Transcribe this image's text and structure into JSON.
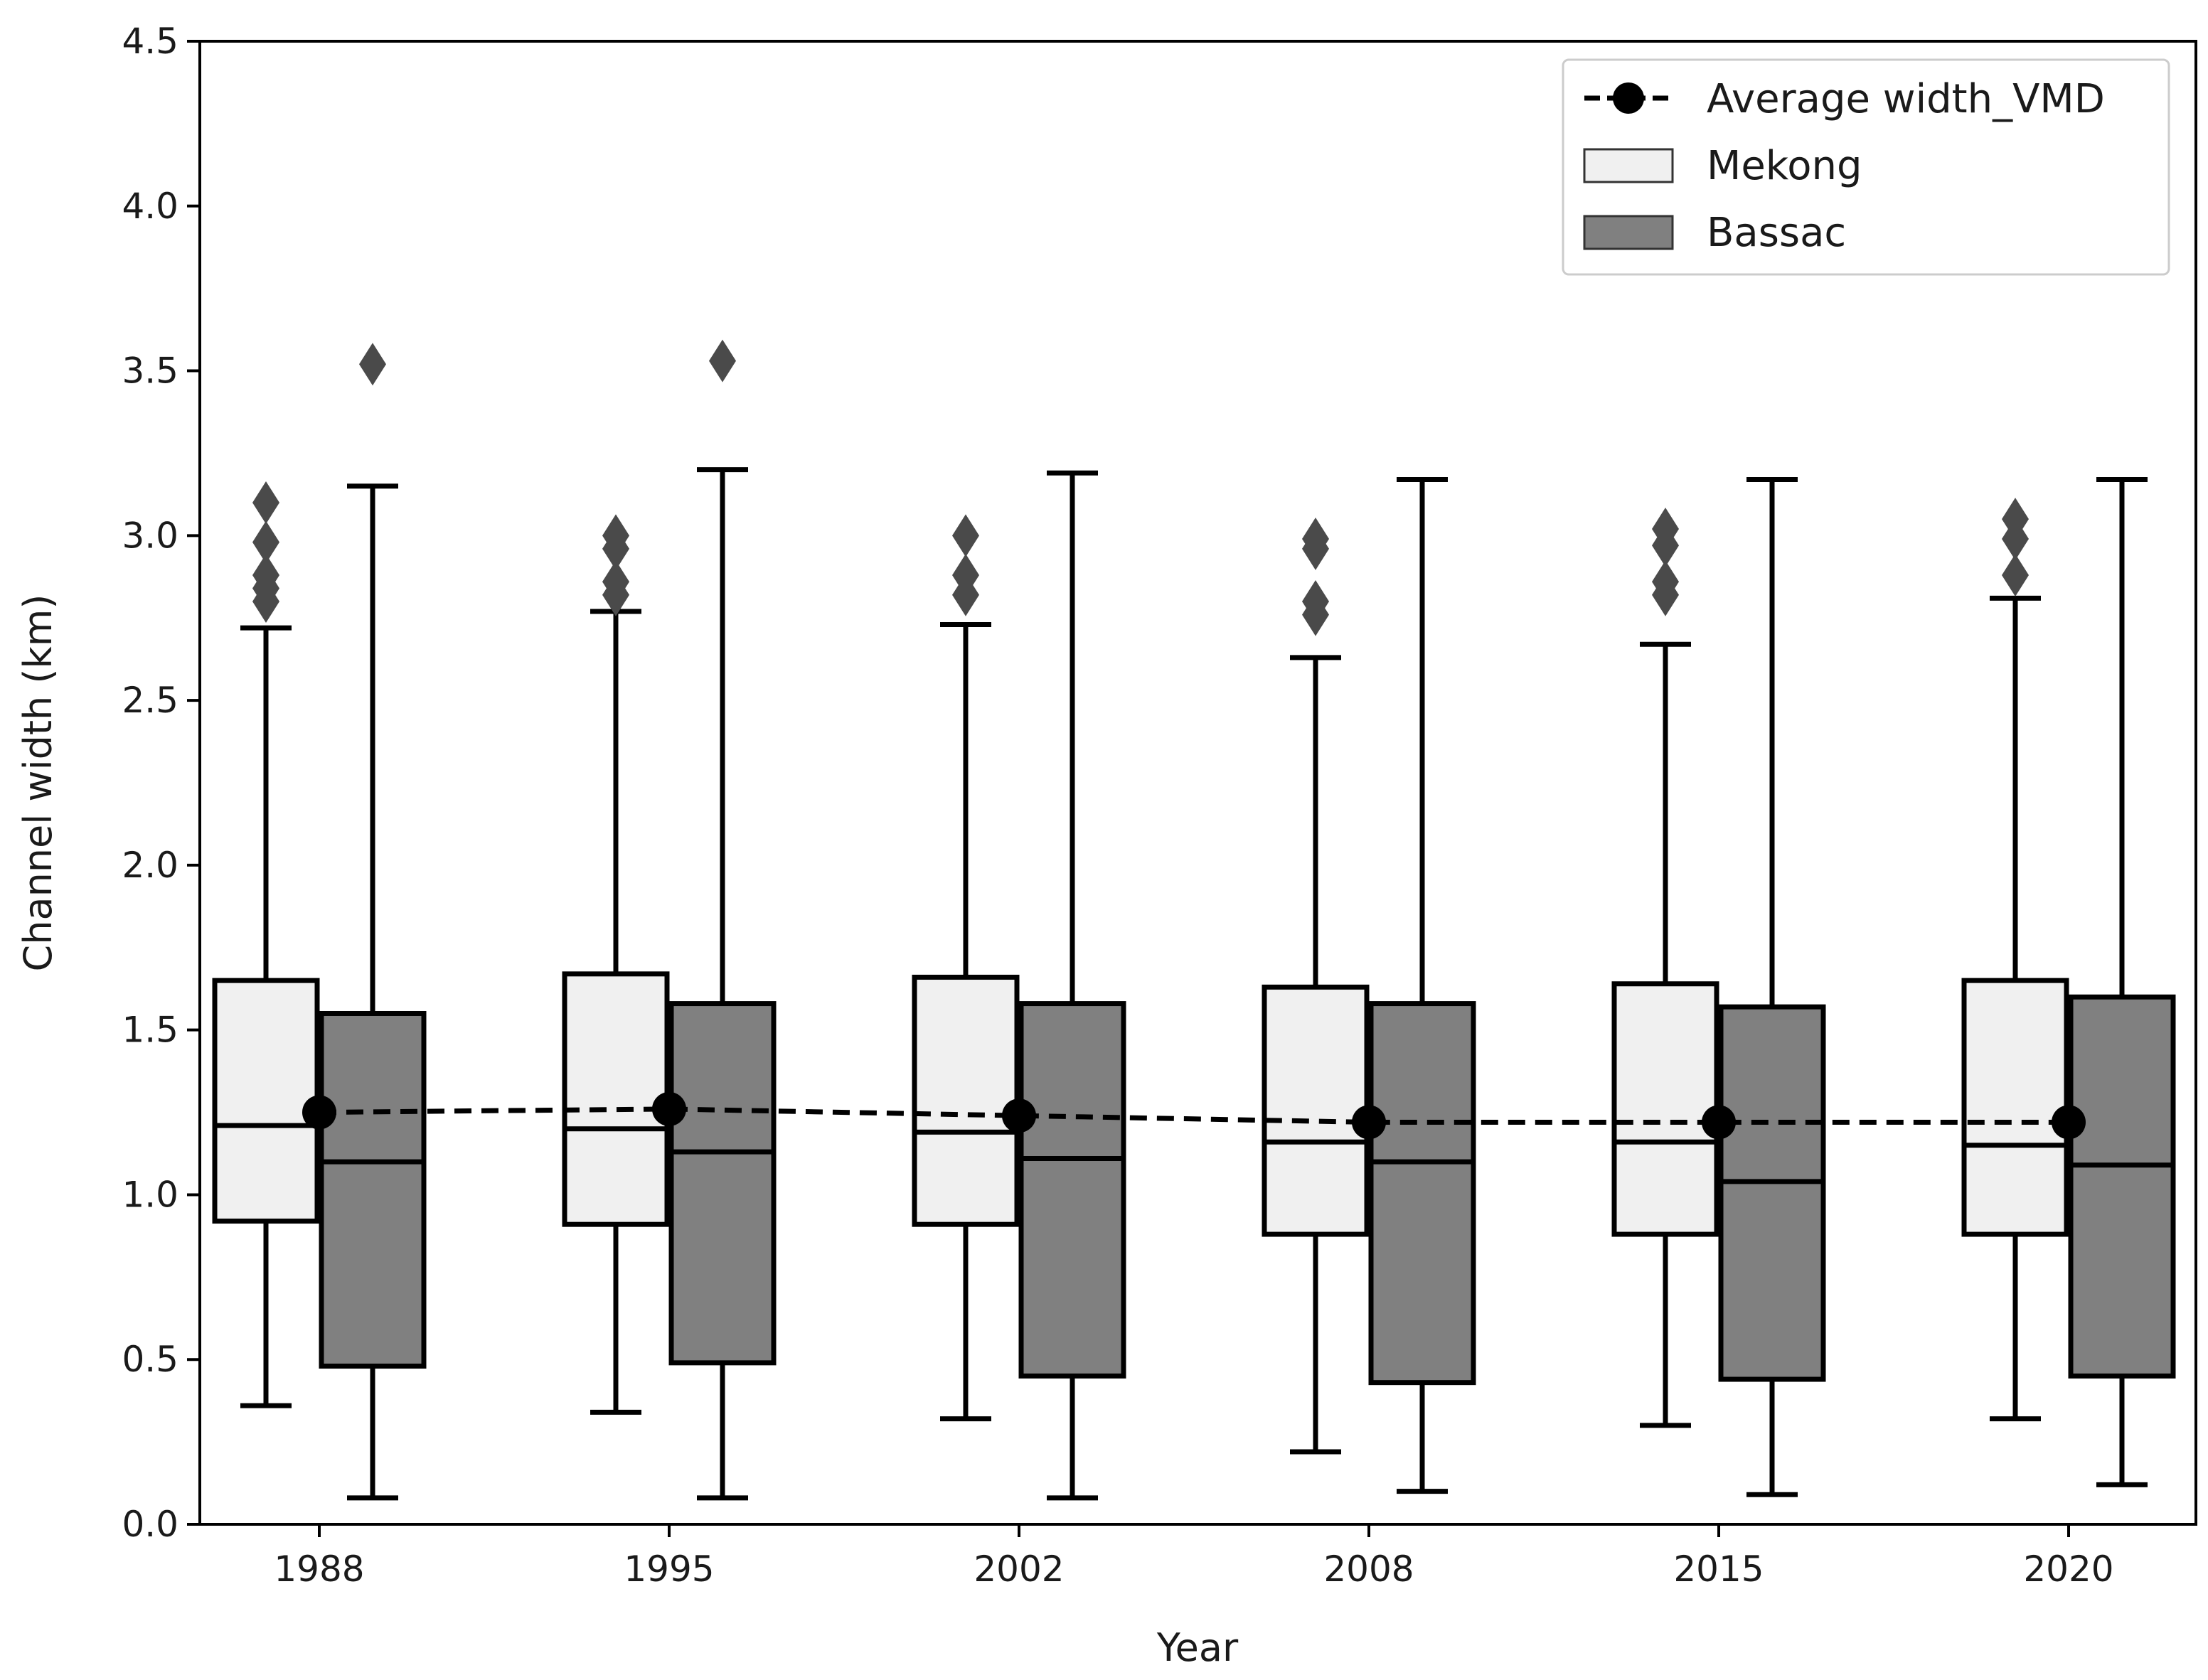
{
  "chart_data": {
    "type": "box",
    "title": "",
    "xlabel": "Year",
    "ylabel": "Channel width (km)",
    "ylim": [
      0,
      4.5
    ],
    "yticks": [
      "0.0",
      "0.5",
      "1.0",
      "1.5",
      "2.0",
      "2.5",
      "3.0",
      "3.5",
      "4.0",
      "4.5"
    ],
    "categories": [
      "1988",
      "1995",
      "2002",
      "2008",
      "2015",
      "2020"
    ],
    "grid": false,
    "legend": {
      "position": "top-right",
      "entries": [
        "Average width_VMD",
        "Mekong",
        "Bassac"
      ]
    },
    "series": [
      {
        "name": "Mekong",
        "color": "#f0f0f0",
        "boxes": [
          {
            "whisker_low": 0.36,
            "q1": 0.92,
            "median": 1.21,
            "q3": 1.65,
            "whisker_high": 2.72,
            "outliers": [
              2.8,
              2.84,
              2.88,
              2.98,
              3.1
            ]
          },
          {
            "whisker_low": 0.34,
            "q1": 0.91,
            "median": 1.2,
            "q3": 1.67,
            "whisker_high": 2.77,
            "outliers": [
              2.82,
              2.86,
              2.96,
              3.0
            ]
          },
          {
            "whisker_low": 0.32,
            "q1": 0.91,
            "median": 1.19,
            "q3": 1.66,
            "whisker_high": 2.73,
            "outliers": [
              2.82,
              2.88,
              3.0
            ]
          },
          {
            "whisker_low": 0.22,
            "q1": 0.88,
            "median": 1.16,
            "q3": 1.63,
            "whisker_high": 2.63,
            "outliers": [
              2.76,
              2.8,
              2.96,
              2.99
            ]
          },
          {
            "whisker_low": 0.3,
            "q1": 0.88,
            "median": 1.16,
            "q3": 1.64,
            "whisker_high": 2.67,
            "outliers": [
              2.82,
              2.86,
              2.97,
              3.02
            ]
          },
          {
            "whisker_low": 0.32,
            "q1": 0.88,
            "median": 1.15,
            "q3": 1.65,
            "whisker_high": 2.81,
            "outliers": [
              2.88,
              2.99,
              3.05
            ]
          }
        ]
      },
      {
        "name": "Bassac",
        "color": "#808080",
        "boxes": [
          {
            "whisker_low": 0.08,
            "q1": 0.48,
            "median": 1.1,
            "q3": 1.55,
            "whisker_high": 3.15,
            "outliers": [
              3.52
            ]
          },
          {
            "whisker_low": 0.08,
            "q1": 0.49,
            "median": 1.13,
            "q3": 1.58,
            "whisker_high": 3.2,
            "outliers": [
              3.53
            ]
          },
          {
            "whisker_low": 0.08,
            "q1": 0.45,
            "median": 1.11,
            "q3": 1.58,
            "whisker_high": 3.19,
            "outliers": []
          },
          {
            "whisker_low": 0.1,
            "q1": 0.43,
            "median": 1.1,
            "q3": 1.58,
            "whisker_high": 3.17,
            "outliers": []
          },
          {
            "whisker_low": 0.09,
            "q1": 0.44,
            "median": 1.04,
            "q3": 1.57,
            "whisker_high": 3.17,
            "outliers": []
          },
          {
            "whisker_low": 0.12,
            "q1": 0.45,
            "median": 1.09,
            "q3": 1.6,
            "whisker_high": 3.17,
            "outliers": []
          }
        ]
      }
    ],
    "line_series": {
      "name": "Average width_VMD",
      "style": "dashed",
      "marker": "circle",
      "color": "#000000",
      "values": [
        1.25,
        1.26,
        1.24,
        1.22,
        1.22,
        1.22
      ]
    },
    "outlier_color": "#4a4a4a"
  }
}
